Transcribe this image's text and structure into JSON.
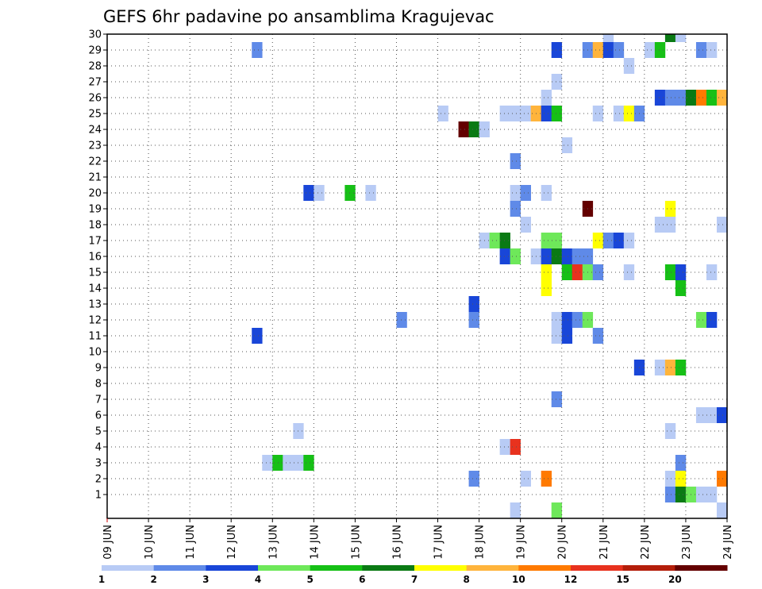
{
  "chart_data": {
    "type": "heatmap",
    "title": "GEFS 6hr padavine po ansamblima Kragujevac",
    "xlabel": "",
    "ylabel": "",
    "x_ticks": [
      "09 JUN",
      "10 JUN",
      "11 JUN",
      "12 JUN",
      "13 JUN",
      "14 JUN",
      "15 JUN",
      "16 JUN",
      "17 JUN",
      "18 JUN",
      "19 JUN",
      "20 JUN",
      "21 JUN",
      "22 JUN",
      "23 JUN",
      "24 JUN"
    ],
    "y_ticks": [
      1,
      2,
      3,
      4,
      5,
      6,
      7,
      8,
      9,
      10,
      11,
      12,
      13,
      14,
      15,
      16,
      17,
      18,
      19,
      20,
      21,
      22,
      23,
      24,
      25,
      26,
      27,
      28,
      29,
      30
    ],
    "x_range": [
      "09 JUN 00Z",
      "24 JUN 00Z"
    ],
    "y_range": [
      0,
      30
    ],
    "grid": true,
    "levels": [
      1,
      2,
      3,
      4,
      5,
      6,
      7,
      8,
      10,
      12,
      15,
      20
    ],
    "level_colors": [
      "#b8cbf5",
      "#5f8ae8",
      "#1946d8",
      "#6ee85a",
      "#16c016",
      "#0a7a14",
      "#ffff00",
      "#ffb43c",
      "#ff7a00",
      "#e8321e",
      "#b41e0a",
      "#640000"
    ],
    "legend_labels": [
      "1",
      "2",
      "3",
      "4",
      "5",
      "6",
      "7",
      "8",
      "10",
      "12",
      "15",
      "20"
    ],
    "cells_note": "each cell: member, start time (day of June + hour), color class index 1-12",
    "cells": [
      {
        "m": 30,
        "t": "21 00Z",
        "c": 1
      },
      {
        "m": 30,
        "t": "22 12Z",
        "c": 6
      },
      {
        "m": 30,
        "t": "22 18Z",
        "c": 1
      },
      {
        "m": 29,
        "t": "12 12Z",
        "c": 2
      },
      {
        "m": 29,
        "t": "19 18Z",
        "c": 3
      },
      {
        "m": 29,
        "t": "20 12Z",
        "c": 2
      },
      {
        "m": 29,
        "t": "20 18Z",
        "c": 8
      },
      {
        "m": 29,
        "t": "21 00Z",
        "c": 3
      },
      {
        "m": 29,
        "t": "21 06Z",
        "c": 2
      },
      {
        "m": 29,
        "t": "22 00Z",
        "c": 1
      },
      {
        "m": 29,
        "t": "22 06Z",
        "c": 5
      },
      {
        "m": 29,
        "t": "23 06Z",
        "c": 2
      },
      {
        "m": 29,
        "t": "23 12Z",
        "c": 1
      },
      {
        "m": 28,
        "t": "21 12Z",
        "c": 1
      },
      {
        "m": 27,
        "t": "19 18Z",
        "c": 1
      },
      {
        "m": 26,
        "t": "19 12Z",
        "c": 1
      },
      {
        "m": 26,
        "t": "22 06Z",
        "c": 3
      },
      {
        "m": 26,
        "t": "22 12Z",
        "c": 2
      },
      {
        "m": 26,
        "t": "22 18Z",
        "c": 2
      },
      {
        "m": 26,
        "t": "23 00Z",
        "c": 6
      },
      {
        "m": 26,
        "t": "23 06Z",
        "c": 9
      },
      {
        "m": 26,
        "t": "23 12Z",
        "c": 5
      },
      {
        "m": 26,
        "t": "23 18Z",
        "c": 8
      },
      {
        "m": 25,
        "t": "17 00Z",
        "c": 1
      },
      {
        "m": 25,
        "t": "18 12Z",
        "c": 1
      },
      {
        "m": 25,
        "t": "18 18Z",
        "c": 1
      },
      {
        "m": 25,
        "t": "19 00Z",
        "c": 1
      },
      {
        "m": 25,
        "t": "19 06Z",
        "c": 8
      },
      {
        "m": 25,
        "t": "19 12Z",
        "c": 3
      },
      {
        "m": 25,
        "t": "19 18Z",
        "c": 5
      },
      {
        "m": 25,
        "t": "20 18Z",
        "c": 1
      },
      {
        "m": 25,
        "t": "21 06Z",
        "c": 1
      },
      {
        "m": 25,
        "t": "21 12Z",
        "c": 7
      },
      {
        "m": 25,
        "t": "21 18Z",
        "c": 2
      },
      {
        "m": 24,
        "t": "17 12Z",
        "c": 12
      },
      {
        "m": 24,
        "t": "17 18Z",
        "c": 6
      },
      {
        "m": 24,
        "t": "18 00Z",
        "c": 1
      },
      {
        "m": 23,
        "t": "20 00Z",
        "c": 1
      },
      {
        "m": 22,
        "t": "18 18Z",
        "c": 2
      },
      {
        "m": 20,
        "t": "13 18Z",
        "c": 3
      },
      {
        "m": 20,
        "t": "14 00Z",
        "c": 1
      },
      {
        "m": 20,
        "t": "14 18Z",
        "c": 5
      },
      {
        "m": 20,
        "t": "15 06Z",
        "c": 1
      },
      {
        "m": 20,
        "t": "18 18Z",
        "c": 1
      },
      {
        "m": 20,
        "t": "19 00Z",
        "c": 2
      },
      {
        "m": 20,
        "t": "19 12Z",
        "c": 1
      },
      {
        "m": 19,
        "t": "18 18Z",
        "c": 2
      },
      {
        "m": 19,
        "t": "20 12Z",
        "c": 12
      },
      {
        "m": 19,
        "t": "22 12Z",
        "c": 7
      },
      {
        "m": 18,
        "t": "19 00Z",
        "c": 1
      },
      {
        "m": 18,
        "t": "22 06Z",
        "c": 1
      },
      {
        "m": 18,
        "t": "22 12Z",
        "c": 1
      },
      {
        "m": 18,
        "t": "23 18Z",
        "c": 1
      },
      {
        "m": 17,
        "t": "18 00Z",
        "c": 1
      },
      {
        "m": 17,
        "t": "18 06Z",
        "c": 4
      },
      {
        "m": 17,
        "t": "18 12Z",
        "c": 6
      },
      {
        "m": 17,
        "t": "19 12Z",
        "c": 4
      },
      {
        "m": 17,
        "t": "19 18Z",
        "c": 4
      },
      {
        "m": 17,
        "t": "20 18Z",
        "c": 7
      },
      {
        "m": 17,
        "t": "21 00Z",
        "c": 2
      },
      {
        "m": 17,
        "t": "21 06Z",
        "c": 3
      },
      {
        "m": 17,
        "t": "21 12Z",
        "c": 1
      },
      {
        "m": 16,
        "t": "18 12Z",
        "c": 3
      },
      {
        "m": 16,
        "t": "18 18Z",
        "c": 4
      },
      {
        "m": 16,
        "t": "19 06Z",
        "c": 1
      },
      {
        "m": 16,
        "t": "19 12Z",
        "c": 3
      },
      {
        "m": 16,
        "t": "19 18Z",
        "c": 6
      },
      {
        "m": 16,
        "t": "20 00Z",
        "c": 3
      },
      {
        "m": 16,
        "t": "20 06Z",
        "c": 2
      },
      {
        "m": 16,
        "t": "20 12Z",
        "c": 2
      },
      {
        "m": 15,
        "t": "19 12Z",
        "c": 7
      },
      {
        "m": 15,
        "t": "20 00Z",
        "c": 5
      },
      {
        "m": 15,
        "t": "20 06Z",
        "c": 10
      },
      {
        "m": 15,
        "t": "20 12Z",
        "c": 4
      },
      {
        "m": 15,
        "t": "20 18Z",
        "c": 2
      },
      {
        "m": 15,
        "t": "21 12Z",
        "c": 1
      },
      {
        "m": 15,
        "t": "22 12Z",
        "c": 5
      },
      {
        "m": 15,
        "t": "22 18Z",
        "c": 3
      },
      {
        "m": 15,
        "t": "23 12Z",
        "c": 1
      },
      {
        "m": 14,
        "t": "19 12Z",
        "c": 7
      },
      {
        "m": 14,
        "t": "22 18Z",
        "c": 5
      },
      {
        "m": 13,
        "t": "17 18Z",
        "c": 3
      },
      {
        "m": 12,
        "t": "16 00Z",
        "c": 2
      },
      {
        "m": 12,
        "t": "17 18Z",
        "c": 2
      },
      {
        "m": 12,
        "t": "19 18Z",
        "c": 1
      },
      {
        "m": 12,
        "t": "20 00Z",
        "c": 3
      },
      {
        "m": 12,
        "t": "20 06Z",
        "c": 2
      },
      {
        "m": 12,
        "t": "20 12Z",
        "c": 4
      },
      {
        "m": 12,
        "t": "23 06Z",
        "c": 4
      },
      {
        "m": 12,
        "t": "23 12Z",
        "c": 3
      },
      {
        "m": 11,
        "t": "12 12Z",
        "c": 3
      },
      {
        "m": 11,
        "t": "19 18Z",
        "c": 1
      },
      {
        "m": 11,
        "t": "20 00Z",
        "c": 3
      },
      {
        "m": 11,
        "t": "20 18Z",
        "c": 2
      },
      {
        "m": 9,
        "t": "21 18Z",
        "c": 3
      },
      {
        "m": 9,
        "t": "22 06Z",
        "c": 1
      },
      {
        "m": 9,
        "t": "22 12Z",
        "c": 8
      },
      {
        "m": 9,
        "t": "22 18Z",
        "c": 5
      },
      {
        "m": 7,
        "t": "19 18Z",
        "c": 2
      },
      {
        "m": 6,
        "t": "23 06Z",
        "c": 1
      },
      {
        "m": 6,
        "t": "23 12Z",
        "c": 1
      },
      {
        "m": 6,
        "t": "23 18Z",
        "c": 3
      },
      {
        "m": 5,
        "t": "13 12Z",
        "c": 1
      },
      {
        "m": 5,
        "t": "22 12Z",
        "c": 1
      },
      {
        "m": 4,
        "t": "18 12Z",
        "c": 1
      },
      {
        "m": 4,
        "t": "18 18Z",
        "c": 10
      },
      {
        "m": 3,
        "t": "12 18Z",
        "c": 1
      },
      {
        "m": 3,
        "t": "13 00Z",
        "c": 5
      },
      {
        "m": 3,
        "t": "13 06Z",
        "c": 1
      },
      {
        "m": 3,
        "t": "13 12Z",
        "c": 1
      },
      {
        "m": 3,
        "t": "13 18Z",
        "c": 5
      },
      {
        "m": 3,
        "t": "22 18Z",
        "c": 2
      },
      {
        "m": 2,
        "t": "17 18Z",
        "c": 2
      },
      {
        "m": 2,
        "t": "19 00Z",
        "c": 1
      },
      {
        "m": 2,
        "t": "19 12Z",
        "c": 9
      },
      {
        "m": 2,
        "t": "22 12Z",
        "c": 1
      },
      {
        "m": 2,
        "t": "22 18Z",
        "c": 7
      },
      {
        "m": 2,
        "t": "23 18Z",
        "c": 9
      },
      {
        "m": 1,
        "t": "22 12Z",
        "c": 2
      },
      {
        "m": 1,
        "t": "22 18Z",
        "c": 6
      },
      {
        "m": 1,
        "t": "23 00Z",
        "c": 4
      },
      {
        "m": 1,
        "t": "23 06Z",
        "c": 1
      },
      {
        "m": 1,
        "t": "23 12Z",
        "c": 1
      },
      {
        "m": 0,
        "t": "18 18Z",
        "c": 1
      },
      {
        "m": 0,
        "t": "19 18Z",
        "c": 4
      },
      {
        "m": 0,
        "t": "23 18Z",
        "c": 1
      }
    ]
  }
}
